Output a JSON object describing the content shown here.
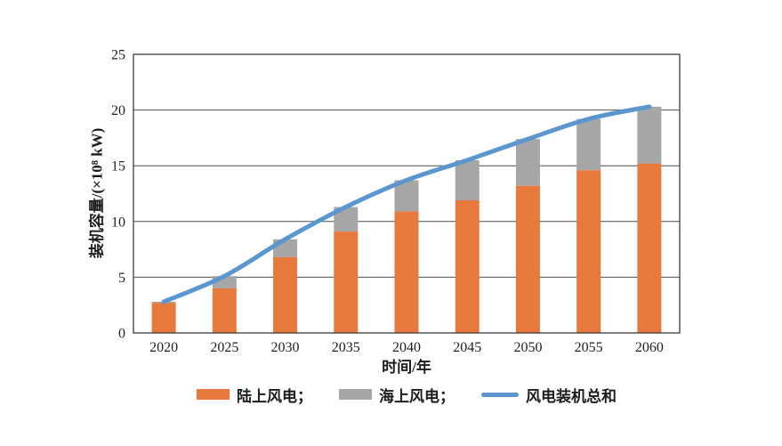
{
  "chart_data": {
    "type": "bar",
    "subtype": "stacked-bars-with-total-line",
    "title": "",
    "categories": [
      "2020",
      "2025",
      "2030",
      "2035",
      "2040",
      "2045",
      "2050",
      "2055",
      "2060"
    ],
    "series": [
      {
        "name": "陆上风电",
        "kind": "bar",
        "color": "#E8793C",
        "values": [
          2.7,
          4.0,
          6.8,
          9.1,
          10.9,
          11.9,
          13.2,
          14.6,
          15.2
        ]
      },
      {
        "name": "海上风电",
        "kind": "bar",
        "color": "#A6A6A6",
        "values": [
          0.1,
          1.1,
          1.6,
          2.2,
          2.8,
          3.6,
          4.2,
          4.6,
          5.1
        ]
      },
      {
        "name": "风电装机总和",
        "kind": "line",
        "color": "#5B96CE",
        "values": [
          2.8,
          5.1,
          8.4,
          11.3,
          13.7,
          15.5,
          17.4,
          19.2,
          20.3
        ]
      }
    ],
    "xlabel": "时间/年",
    "ylabel": "装机容量/(×10⁸ kW)",
    "ylim": [
      0,
      25
    ],
    "yticks": [
      0,
      5,
      10,
      15,
      20,
      25
    ],
    "grid": "horizontal",
    "legend_position": "bottom",
    "legend": [
      {
        "label": "陆上风电；",
        "swatch": "bar"
      },
      {
        "label": "海上风电；",
        "swatch": "bar"
      },
      {
        "label": "风电装机总和",
        "swatch": "line"
      }
    ],
    "colors": {
      "axis": "#3d3d3d",
      "grid": "#4f4f4f",
      "text": "#1f1f1f",
      "background": "#ffffff"
    }
  }
}
